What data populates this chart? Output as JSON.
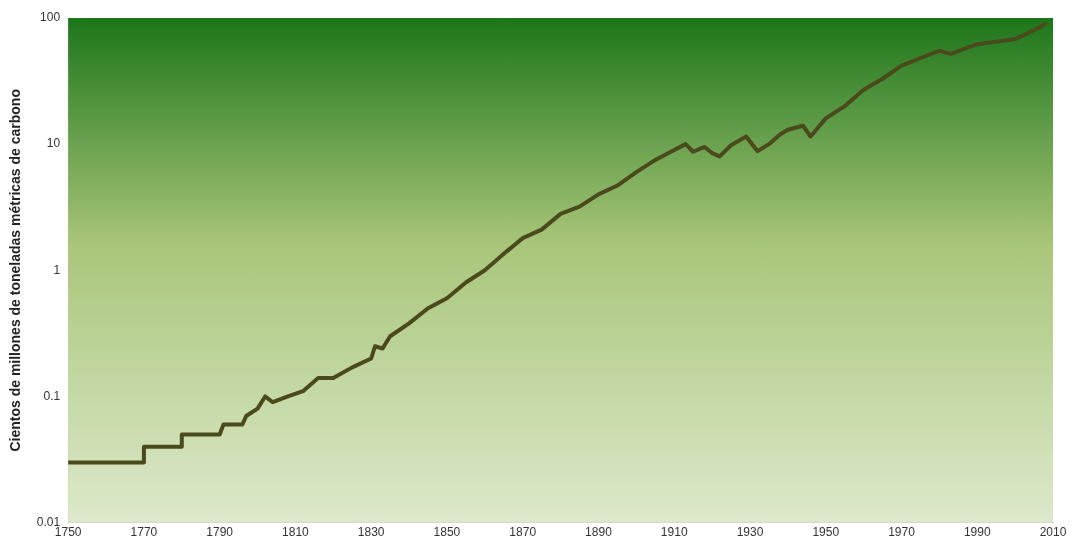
{
  "chart_data": {
    "type": "line",
    "ylabel": "Cientos de millones de toneladas métricas de carbono",
    "log": "y",
    "grid": false,
    "legend": false,
    "marker": "none",
    "line_style": "solid",
    "xlim": [
      1750,
      2010
    ],
    "xticks": [
      1750,
      1770,
      1790,
      1810,
      1830,
      1850,
      1870,
      1890,
      1910,
      1930,
      1950,
      1970,
      1990,
      2010
    ],
    "ylim": [
      0.01,
      100
    ],
    "yticks": [
      0.01,
      0.1,
      1,
      10,
      100
    ],
    "x": [
      1750,
      1770,
      1770,
      1780,
      1780,
      1790,
      1791,
      1796,
      1797,
      1800,
      1802,
      1804,
      1808,
      1812,
      1816,
      1820,
      1825,
      1830,
      1831,
      1833,
      1835,
      1840,
      1845,
      1850,
      1855,
      1860,
      1865,
      1870,
      1875,
      1880,
      1885,
      1890,
      1895,
      1900,
      1905,
      1910,
      1913,
      1915,
      1918,
      1920,
      1922,
      1925,
      1929,
      1932,
      1935,
      1938,
      1940,
      1944,
      1946,
      1950,
      1955,
      1960,
      1965,
      1970,
      1975,
      1980,
      1983,
      1990,
      2000,
      2005,
      2008
    ],
    "series": [
      {
        "color": "#4b4a1c",
        "values": [
          0.03,
          0.03,
          0.04,
          0.04,
          0.05,
          0.05,
          0.06,
          0.06,
          0.07,
          0.08,
          0.1,
          0.09,
          0.1,
          0.11,
          0.14,
          0.14,
          0.17,
          0.2,
          0.25,
          0.24,
          0.3,
          0.38,
          0.5,
          0.6,
          0.8,
          1.0,
          1.35,
          1.8,
          2.1,
          2.8,
          3.2,
          4,
          4.7,
          6,
          7.5,
          9,
          10,
          8.7,
          9.5,
          8.5,
          8,
          9.8,
          11.5,
          8.8,
          10,
          12,
          13,
          14,
          11.5,
          16,
          20,
          27,
          33,
          42,
          48,
          55,
          52,
          62,
          68,
          80,
          90
        ]
      }
    ]
  }
}
